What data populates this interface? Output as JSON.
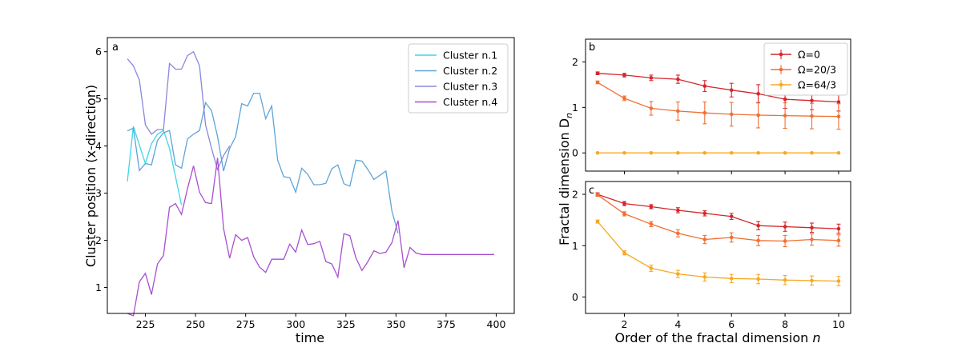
{
  "chart_data": [
    {
      "panel": "a",
      "type": "line",
      "xlabel": "time",
      "ylabel": "Cluster position (x-direction)",
      "xlim": [
        206,
        409
      ],
      "ylim": [
        0.45,
        6.3
      ],
      "xticks": [
        225,
        250,
        275,
        300,
        325,
        350,
        375,
        400
      ],
      "yticks": [
        1,
        2,
        3,
        4,
        5,
        6
      ],
      "legend_position": "top-right",
      "series": [
        {
          "name": "Cluster n.1",
          "color": "#3fd7e4",
          "x": [
            216,
            219,
            222,
            225,
            228,
            231,
            234,
            237,
            240,
            243
          ],
          "y": [
            3.25,
            4.42,
            4.02,
            3.63,
            4.05,
            4.25,
            4.33,
            3.95,
            3.35,
            2.75
          ]
        },
        {
          "name": "Cluster n.2",
          "color": "#5da5d8",
          "x": [
            216,
            219,
            222,
            225,
            228,
            231,
            234,
            237,
            240,
            243,
            246,
            249,
            252,
            255,
            258,
            261,
            264,
            267,
            270,
            273,
            276,
            279,
            282,
            285,
            288,
            291,
            294,
            297,
            300,
            303,
            306,
            309,
            312,
            315,
            318,
            321,
            324,
            327,
            330,
            333,
            336,
            339,
            342,
            345,
            348,
            351
          ],
          "y": [
            4.32,
            4.38,
            3.48,
            3.63,
            3.6,
            4.12,
            4.28,
            4.33,
            3.6,
            3.53,
            4.15,
            4.25,
            4.33,
            4.92,
            4.75,
            4.2,
            3.47,
            3.95,
            4.2,
            4.9,
            4.85,
            5.12,
            5.12,
            4.58,
            4.85,
            3.7,
            3.35,
            3.33,
            3.02,
            3.53,
            3.4,
            3.18,
            3.18,
            3.21,
            3.52,
            3.6,
            3.2,
            3.15,
            3.7,
            3.68,
            3.5,
            3.29,
            3.38,
            3.47,
            2.62,
            2.15
          ]
        },
        {
          "name": "Cluster n.3",
          "color": "#8888dd",
          "x": [
            216,
            219,
            222,
            225,
            228,
            231,
            234,
            237,
            240,
            243,
            246,
            249,
            252,
            255,
            258,
            261,
            264,
            267
          ],
          "y": [
            5.85,
            5.7,
            5.4,
            4.45,
            4.25,
            4.35,
            4.35,
            5.75,
            5.63,
            5.63,
            5.92,
            6.0,
            5.7,
            4.45,
            3.95,
            3.5,
            3.8,
            4.0
          ]
        },
        {
          "name": "Cluster n.4",
          "color": "#a84fd0",
          "x": [
            216,
            219,
            222,
            225,
            228,
            231,
            234,
            237,
            240,
            243,
            246,
            249,
            252,
            255,
            258,
            261,
            264,
            267,
            270,
            273,
            276,
            279,
            282,
            285,
            288,
            291,
            294,
            297,
            300,
            303,
            306,
            309,
            312,
            315,
            318,
            321,
            324,
            327,
            330,
            333,
            336,
            339,
            342,
            345,
            348,
            351,
            354,
            357,
            360,
            363,
            366,
            369,
            372,
            375,
            378,
            381,
            384,
            387,
            390,
            393,
            396,
            399
          ],
          "y": [
            0.45,
            0.4,
            1.12,
            1.3,
            0.85,
            1.5,
            1.68,
            2.7,
            2.78,
            2.55,
            3.1,
            3.58,
            3.02,
            2.8,
            2.78,
            3.75,
            2.25,
            1.62,
            2.12,
            2.0,
            2.06,
            1.65,
            1.43,
            1.32,
            1.6,
            1.6,
            1.6,
            1.92,
            1.75,
            2.22,
            1.91,
            1.93,
            1.98,
            1.55,
            1.5,
            1.22,
            2.14,
            2.1,
            1.63,
            1.36,
            1.55,
            1.78,
            1.72,
            1.75,
            1.95,
            2.42,
            1.42,
            1.85,
            1.73,
            1.7,
            1.7,
            1.7,
            1.7,
            1.7,
            1.7,
            1.7,
            1.7,
            1.7,
            1.7,
            1.7,
            1.7,
            1.7
          ]
        }
      ]
    },
    {
      "panel": "b",
      "type": "line",
      "xlabel": "",
      "ylabel": "",
      "xlim": [
        0.55,
        10.45
      ],
      "ylim": [
        -0.4,
        2.5
      ],
      "yticks": [
        0,
        1,
        2
      ],
      "legend_position": "top-right",
      "series": [
        {
          "name": "Ω=0",
          "color": "#d6262b",
          "x": [
            1,
            2,
            3,
            4,
            5,
            6,
            7,
            8,
            9,
            10
          ],
          "y": [
            1.75,
            1.71,
            1.65,
            1.62,
            1.47,
            1.38,
            1.3,
            1.18,
            1.15,
            1.12
          ],
          "err": [
            0.03,
            0.04,
            0.06,
            0.09,
            0.12,
            0.15,
            0.2,
            0.2,
            0.2,
            0.2
          ]
        },
        {
          "name": "Ω=20/3",
          "color": "#f07034",
          "x": [
            1,
            2,
            3,
            4,
            5,
            6,
            7,
            8,
            9,
            10
          ],
          "y": [
            1.55,
            1.2,
            0.98,
            0.92,
            0.88,
            0.85,
            0.83,
            0.82,
            0.81,
            0.8
          ],
          "err": [
            0.03,
            0.05,
            0.15,
            0.2,
            0.24,
            0.26,
            0.28,
            0.28,
            0.28,
            0.28
          ]
        },
        {
          "name": "Ω=64/3",
          "color": "#f7a823",
          "x": [
            1,
            2,
            3,
            4,
            5,
            6,
            7,
            8,
            9,
            10
          ],
          "y": [
            0,
            0,
            0,
            0,
            0,
            0,
            0,
            0,
            0,
            0
          ],
          "err": [
            0,
            0,
            0,
            0,
            0,
            0,
            0,
            0,
            0,
            0
          ]
        }
      ]
    },
    {
      "panel": "c",
      "type": "line",
      "xlabel": "Order of the fractal dimension n",
      "ylabel": "Fractal dimension D_n",
      "xlim": [
        0.55,
        10.45
      ],
      "ylim": [
        -0.32,
        2.25
      ],
      "xticks": [
        2,
        4,
        6,
        8,
        10
      ],
      "yticks": [
        0,
        1,
        2
      ],
      "series": [
        {
          "name": "Ω=0",
          "color": "#d6262b",
          "x": [
            1,
            2,
            3,
            4,
            5,
            6,
            7,
            8,
            9,
            10
          ],
          "y": [
            2.0,
            1.82,
            1.76,
            1.69,
            1.63,
            1.57,
            1.39,
            1.37,
            1.35,
            1.33
          ],
          "err": [
            0.03,
            0.04,
            0.04,
            0.05,
            0.05,
            0.06,
            0.08,
            0.09,
            0.09,
            0.09
          ]
        },
        {
          "name": "Ω=20/3",
          "color": "#f07034",
          "x": [
            1,
            2,
            3,
            4,
            5,
            6,
            7,
            8,
            9,
            10
          ],
          "y": [
            1.99,
            1.62,
            1.42,
            1.24,
            1.12,
            1.16,
            1.1,
            1.09,
            1.12,
            1.1
          ],
          "err": [
            0.03,
            0.04,
            0.05,
            0.07,
            0.08,
            0.09,
            0.1,
            0.11,
            0.11,
            0.11
          ]
        },
        {
          "name": "Ω=64/3",
          "color": "#f7a823",
          "x": [
            1,
            2,
            3,
            4,
            5,
            6,
            7,
            8,
            9,
            10
          ],
          "y": [
            1.47,
            0.86,
            0.56,
            0.45,
            0.39,
            0.36,
            0.35,
            0.33,
            0.32,
            0.31
          ],
          "err": [
            0.03,
            0.04,
            0.06,
            0.07,
            0.08,
            0.08,
            0.09,
            0.09,
            0.09,
            0.09
          ]
        }
      ]
    }
  ],
  "panel_letters": {
    "a": "a",
    "b": "b",
    "c": "c"
  },
  "labels": {
    "a_xlabel": "time",
    "a_ylabel": "Cluster position (x-direction)",
    "right_xlabel_prefix": "Order of the fractal dimension ",
    "right_xlabel_var": "n",
    "right_ylabel_prefix": "Fractal dimension D",
    "right_ylabel_sub": "n"
  },
  "legend_a": [
    "Cluster n.1",
    "Cluster n.2",
    "Cluster n.3",
    "Cluster n.4"
  ],
  "legend_b": [
    "Ω=0",
    "Ω=20/3",
    "Ω=64/3"
  ]
}
